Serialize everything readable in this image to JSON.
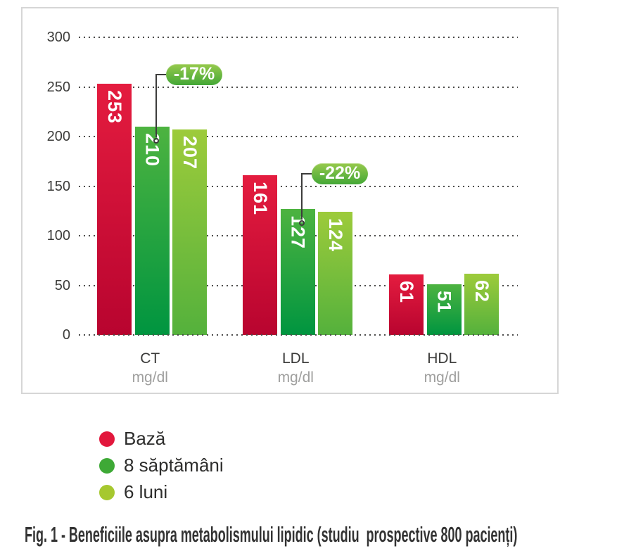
{
  "figure": {
    "caption": "Fig. 1 - Beneficiile asupra metabolismului lipidic (studiu  prospective 800 pacienți)"
  },
  "chart_data": {
    "type": "bar",
    "title": "",
    "categories": [
      "CT",
      "LDL",
      "HDL"
    ],
    "category_units": [
      "mg/dl",
      "mg/dl",
      "mg/dl"
    ],
    "series": [
      {
        "name": "Bază",
        "values": [
          253,
          161,
          61
        ],
        "color_top": "#e41c3f",
        "color_bottom": "#b8042f",
        "legend_color": "#e2173c"
      },
      {
        "name": "8 săptămâni",
        "values": [
          210,
          127,
          51
        ],
        "color_top": "#4db340",
        "color_bottom": "#009540",
        "legend_color": "#3ea936"
      },
      {
        "name": "6 luni",
        "values": [
          207,
          124,
          62
        ],
        "color_top": "#9dcb3b",
        "color_bottom": "#54b13c",
        "legend_color": "#a6c82f"
      }
    ],
    "annotations": [
      {
        "text": "-17%",
        "category_index": 0,
        "series_index": 1
      },
      {
        "text": "-22%",
        "category_index": 1,
        "series_index": 1
      }
    ],
    "yticks": [
      300,
      250,
      200,
      150,
      100,
      50,
      0
    ],
    "ylim": [
      0,
      300
    ],
    "grid": "horizontal-dotted",
    "legend_position": "below-left",
    "bar_value_labels": "inside-top-vertical",
    "colors": {
      "grid_dots": "#4b4b4a",
      "connector": "#3c3c3b",
      "bubble_top": "#97ca4d",
      "bubble_bottom": "#43a736",
      "bubble_text": "#ffffff",
      "bar_value_text": "#ffffff",
      "axis_text": "#3d3d3b",
      "unit_text": "#9f9f9e",
      "legend_text": "#2d2d2c",
      "caption_text": "#333333",
      "chart_border": "#d6d6d6",
      "background": "#ffffff"
    }
  }
}
